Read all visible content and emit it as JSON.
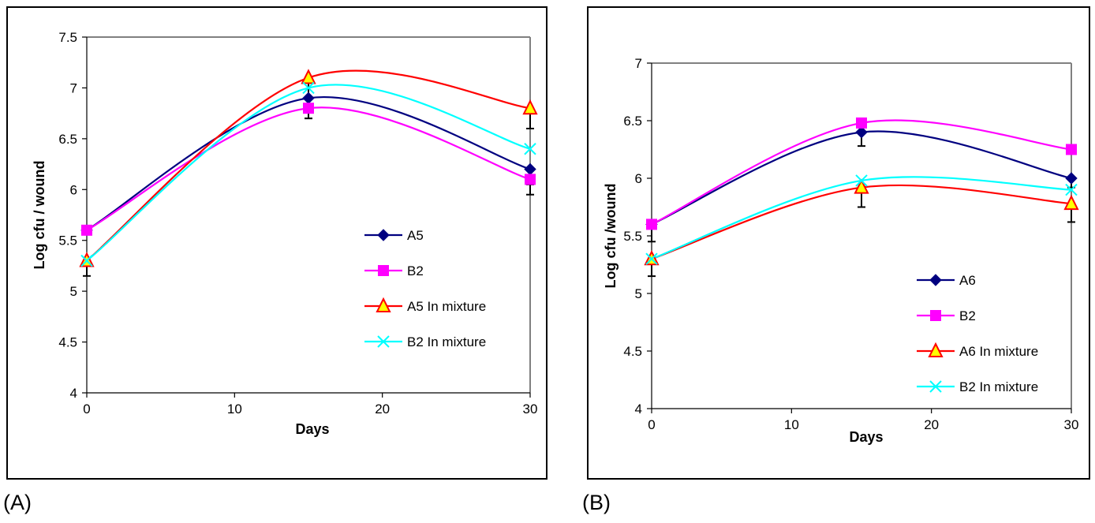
{
  "panel_labels": [
    "(A)",
    "(B)"
  ],
  "chart_data": [
    {
      "type": "line",
      "ylabel": "Log cfu / wound",
      "xlabel": "Days",
      "xlim": [
        0,
        30
      ],
      "ylim": [
        4,
        7.5
      ],
      "xticks": [
        "0",
        "10",
        "20",
        "30"
      ],
      "yticks": [
        "4",
        "4.5",
        "5",
        "5.5",
        "6",
        "6.5",
        "7",
        "7.5"
      ],
      "x": [
        0,
        15,
        30
      ],
      "legend_position": "right",
      "series": [
        {
          "name": "A5",
          "values": [
            5.6,
            6.9,
            6.2
          ],
          "color": "#000080",
          "marker": "diamond",
          "error": [
            0,
            0.2,
            0.15
          ]
        },
        {
          "name": "B2",
          "values": [
            5.6,
            6.8,
            6.1
          ],
          "color": "#ff00ff",
          "marker": "square",
          "error": [
            0,
            0.1,
            0.15
          ]
        },
        {
          "name": "A5 In mixture",
          "values": [
            5.3,
            7.1,
            6.8
          ],
          "color": "#ff0000",
          "marker": "triangle",
          "error": [
            0.15,
            0.2,
            0.2
          ]
        },
        {
          "name": "B2 In mixture",
          "values": [
            5.3,
            7.0,
            6.4
          ],
          "color": "#00ffff",
          "marker": "x",
          "error": [
            0,
            0,
            0
          ]
        }
      ]
    },
    {
      "type": "line",
      "ylabel": "Log cfu /wound",
      "xlabel": "Days",
      "xlim": [
        0,
        30
      ],
      "ylim": [
        4,
        7
      ],
      "xticks": [
        "0",
        "10",
        "20",
        "30"
      ],
      "yticks": [
        "4",
        "4.5",
        "5",
        "5.5",
        "6",
        "6.5",
        "7"
      ],
      "x": [
        0,
        15,
        30
      ],
      "legend_position": "right",
      "series": [
        {
          "name": "A6",
          "values": [
            5.6,
            6.4,
            6.0
          ],
          "color": "#000080",
          "marker": "diamond",
          "error": [
            0.15,
            0.12,
            0.08
          ]
        },
        {
          "name": "B2",
          "values": [
            5.6,
            6.48,
            6.25
          ],
          "color": "#ff00ff",
          "marker": "square",
          "error": [
            0,
            0,
            0
          ]
        },
        {
          "name": "A6 In mixture",
          "values": [
            5.3,
            5.92,
            5.78
          ],
          "color": "#ff0000",
          "marker": "triangle",
          "error": [
            0.15,
            0.17,
            0.16
          ]
        },
        {
          "name": "B2 In mixture",
          "values": [
            5.3,
            5.98,
            5.9
          ],
          "color": "#00ffff",
          "marker": "x",
          "error": [
            0,
            0,
            0
          ]
        }
      ]
    }
  ]
}
